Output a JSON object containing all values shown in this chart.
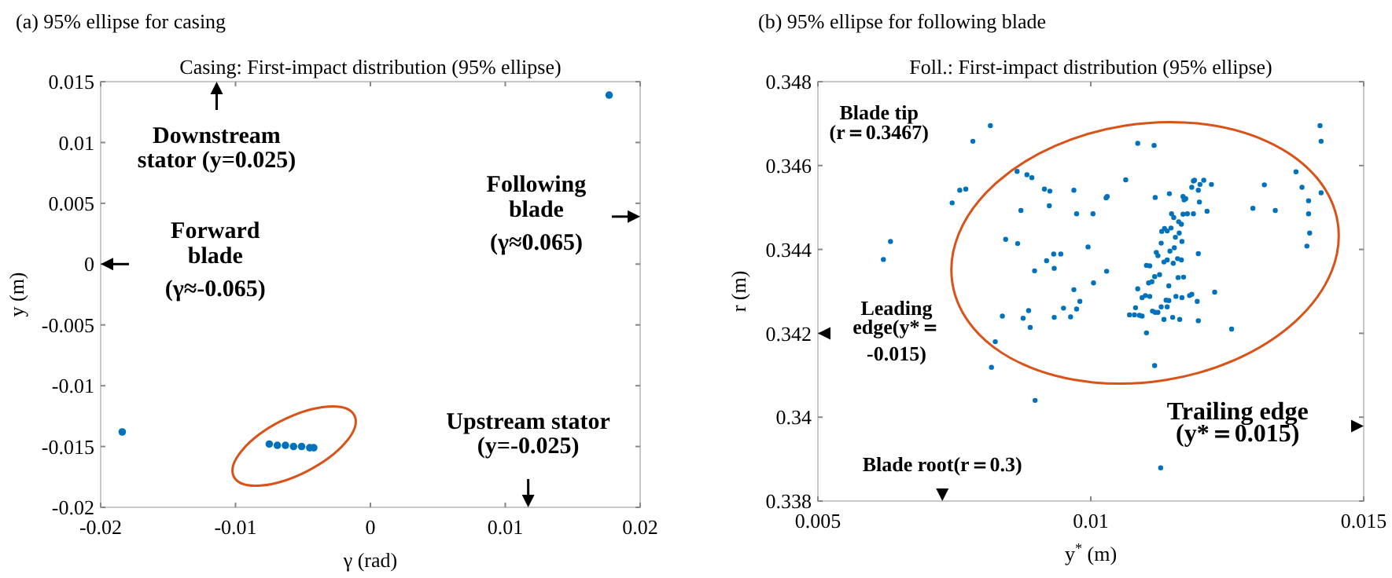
{
  "chart_data": [
    {
      "type": "scatter",
      "title": "(a) 95% ellipse for casing",
      "subtitle": "Casing: First-impact distribution (95% ellipse)",
      "xlabel": "γ (rad)",
      "ylabel": "y (m)",
      "xlim": [
        -0.02,
        0.02
      ],
      "xticks": [
        -0.02,
        -0.01,
        0,
        0.01,
        0.02
      ],
      "ylim": [
        -0.02,
        0.015
      ],
      "yticks": [
        -0.02,
        -0.015,
        -0.01,
        -0.005,
        0,
        0.005,
        0.01,
        0.015
      ],
      "grid": false,
      "marker": "circle",
      "series": [
        {
          "color": "#0072bd",
          "x": [
            0.0177,
            -0.0184,
            -0.0075,
            -0.0069,
            -0.0063,
            -0.0057,
            -0.0051,
            -0.0045,
            -0.0042
          ],
          "values": [
            0.0139,
            -0.0138,
            -0.0148,
            -0.0149,
            -0.0149,
            -0.015,
            -0.015,
            -0.0151,
            -0.0151
          ]
        }
      ],
      "annotations": [
        "Downstream\nstator (y=0.025)",
        "Forward\nblade\n(γ≈-0.065)",
        "Following\nblade\n(γ≈0.065)",
        "Upstream stator\n(y=-0.025)"
      ]
    },
    {
      "type": "scatter",
      "title": "(b) 95% ellipse for following blade",
      "subtitle": "Foll.: First-impact distribution (95% ellipse)",
      "xlabel": "y$^{*}$ (m)",
      "ylabel": "r (m)",
      "xlim": [
        0.005,
        0.015
      ],
      "xticks": [
        0.005,
        0.01,
        0.015
      ],
      "ylim": [
        0.338,
        0.348
      ],
      "yticks": [
        0.338,
        0.34,
        0.342,
        0.344,
        0.346,
        0.348
      ],
      "grid": false,
      "marker": "circle",
      "series": [
        {
          "color": "#0072bd",
          "x": [
            0.0062,
            0.00633,
            0.00746,
            0.0076,
            0.00771,
            0.00784,
            0.00816,
            0.00838,
            0.00825,
            0.00818,
            0.00898,
            0.00865,
            0.00883,
            0.00892,
            0.00872,
            0.00844,
            0.00866,
            0.00897,
            0.00876,
            0.00886,
            0.00889,
            0.00919,
            0.00932,
            0.00945,
            0.00933,
            0.00915,
            0.00925,
            0.00924,
            0.00933,
            0.0095,
            0.00963,
            0.00969,
            0.00974,
            0.0098,
            0.00969,
            0.00974,
            0.01004,
            0.00995,
            0.01005,
            0.01028,
            0.0103,
            0.01029,
            0.01064,
            0.01086,
            0.01116,
            0.01118,
            0.01144,
            0.01117,
            0.01128,
            0.01102,
            0.01197,
            0.01258,
            0.01227,
            0.01213,
            0.012,
            0.01221,
            0.01188,
            0.01207,
            0.01297,
            0.01318,
            0.01338,
            0.01376,
            0.01387,
            0.01399,
            0.01399,
            0.01401,
            0.01396,
            0.0142,
            0.01422,
            0.01422,
            0.01071,
            0.0108,
            0.01089,
            0.01094,
            0.01082,
            0.01086,
            0.01094,
            0.011,
            0.01108,
            0.01113,
            0.01118,
            0.01129,
            0.01134,
            0.01138,
            0.01143,
            0.0115,
            0.01163,
            0.01156,
            0.01167,
            0.01181,
            0.01185,
            0.01195,
            0.01106,
            0.01112,
            0.01117,
            0.01126,
            0.01143,
            0.0116,
            0.0117,
            0.01102,
            0.01108,
            0.01134,
            0.0114,
            0.01151,
            0.01159,
            0.01166,
            0.01197,
            0.0112,
            0.01123,
            0.01129,
            0.01145,
            0.01153,
            0.01167,
            0.0113,
            0.01135,
            0.0114,
            0.01147,
            0.01155,
            0.01162,
            0.01166,
            0.01148,
            0.01152,
            0.01161,
            0.01169,
            0.01177,
            0.01188,
            0.01169,
            0.01171,
            0.01174,
            0.01185,
            0.0119,
            0.01197,
            0.01199,
            0.01123,
            0.0114
          ],
          "values": [
            0.34376,
            0.34419,
            0.34511,
            0.34541,
            0.34544,
            0.34658,
            0.34695,
            0.34241,
            0.3418,
            0.34119,
            0.3404,
            0.34586,
            0.34578,
            0.34571,
            0.34493,
            0.34424,
            0.34414,
            0.34349,
            0.34236,
            0.34254,
            0.34214,
            0.34373,
            0.34389,
            0.34389,
            0.34355,
            0.34544,
            0.34539,
            0.34504,
            0.34238,
            0.3426,
            0.34239,
            0.34304,
            0.34258,
            0.34276,
            0.34541,
            0.34485,
            0.34485,
            0.34406,
            0.3432,
            0.34523,
            0.34526,
            0.34348,
            0.34566,
            0.34653,
            0.34648,
            0.34524,
            0.34533,
            0.34123,
            0.33879,
            0.34201,
            0.3423,
            0.3421,
            0.34298,
            0.34491,
            0.34555,
            0.34555,
            0.34563,
            0.34565,
            0.34498,
            0.34554,
            0.34493,
            0.34585,
            0.34548,
            0.34516,
            0.34485,
            0.34439,
            0.34408,
            0.34695,
            0.34658,
            0.34535,
            0.34244,
            0.34244,
            0.34243,
            0.34241,
            0.34261,
            0.34306,
            0.34285,
            0.3429,
            0.34288,
            0.34253,
            0.3425,
            0.34263,
            0.34233,
            0.34279,
            0.34278,
            0.34238,
            0.34233,
            0.34288,
            0.34285,
            0.3429,
            0.34293,
            0.34276,
            0.3432,
            0.34323,
            0.34335,
            0.3434,
            0.34313,
            0.34333,
            0.34334,
            0.34362,
            0.34361,
            0.3437,
            0.34375,
            0.34367,
            0.34378,
            0.34375,
            0.3439,
            0.34393,
            0.34385,
            0.34415,
            0.34396,
            0.34404,
            0.34419,
            0.34443,
            0.3445,
            0.34444,
            0.34451,
            0.34429,
            0.34439,
            0.3446,
            0.34485,
            0.34476,
            0.34466,
            0.34484,
            0.34485,
            0.34485,
            0.34526,
            0.34518,
            0.34521,
            0.34548,
            0.34565,
            0.34541,
            0.34513,
            0.3425,
            0.34263
          ]
        }
      ],
      "annotations": [
        "Blade tip\n(r＝0.3467)",
        "Leading\nedge(y*＝\n-0.015)",
        "Trailing edge\n(y*＝0.015)",
        "Blade root(r＝0.3)"
      ]
    }
  ]
}
